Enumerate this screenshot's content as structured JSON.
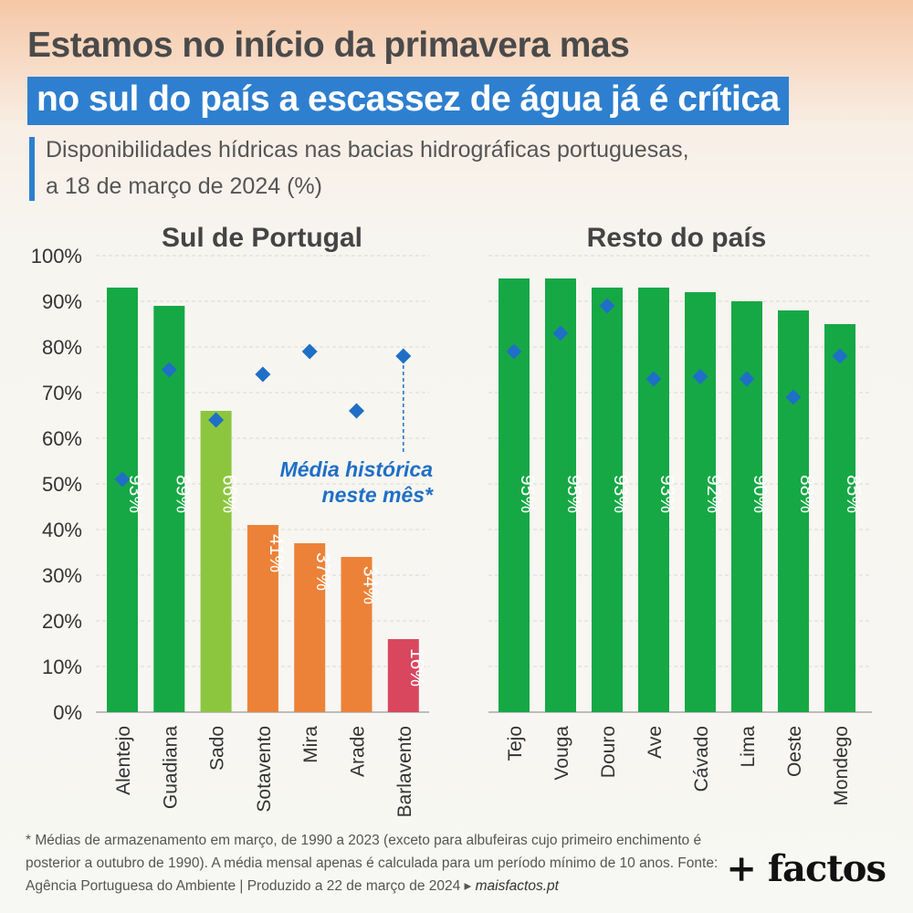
{
  "header": {
    "title_line1": "Estamos no início da primavera mas",
    "title_line2": "no sul do país a escassez de água já é crítica",
    "subtitle_line1": "Disponibilidades hídricas nas bacias hidrográficas portuguesas,",
    "subtitle_line2": "a 18 de março de 2024 (%)"
  },
  "colors": {
    "accent": "#2e7fcf",
    "dark_green": "#16a845",
    "light_green": "#8cc63f",
    "orange": "#ec8238",
    "red": "#d9475f",
    "marker": "#1f6fc6"
  },
  "chart_data": [
    {
      "type": "bar",
      "title": "Sul de Portugal",
      "categories": [
        "Alentejo",
        "Guadiana",
        "Sado",
        "Sotavento",
        "Mira",
        "Arade",
        "Barlavento"
      ],
      "series": [
        {
          "values": [
            93,
            89,
            66,
            41,
            37,
            34,
            16
          ],
          "labels": [
            "93%",
            "89%",
            "66%",
            "41%",
            "37%",
            "34%",
            "16%"
          ]
        },
        {
          "name": "Média histórica neste mês*",
          "type": "marker",
          "values": [
            51,
            75,
            64,
            74,
            79,
            66,
            78
          ]
        }
      ],
      "bar_colors": [
        "#16a845",
        "#16a845",
        "#8cc63f",
        "#ec8238",
        "#ec8238",
        "#ec8238",
        "#d9475f"
      ],
      "ylim": [
        0,
        100
      ],
      "yticks": [
        "0%",
        "10%",
        "20%",
        "30%",
        "40%",
        "50%",
        "60%",
        "70%",
        "80%",
        "90%",
        "100%"
      ],
      "grid": true
    },
    {
      "type": "bar",
      "title": "Resto do país",
      "categories": [
        "Tejo",
        "Vouga",
        "Douro",
        "Ave",
        "Cávado",
        "Lima",
        "Oeste",
        "Mondego"
      ],
      "series": [
        {
          "values": [
            95,
            95,
            93,
            93,
            92,
            90,
            88,
            85
          ],
          "labels": [
            "95%",
            "95%",
            "93%",
            "93%",
            "92%",
            "90%",
            "88%",
            "85%"
          ]
        },
        {
          "type": "marker",
          "values": [
            79,
            83,
            89,
            73,
            73.5,
            73,
            69,
            78
          ]
        }
      ],
      "bar_colors": [
        "#16a845",
        "#16a845",
        "#16a845",
        "#16a845",
        "#16a845",
        "#16a845",
        "#16a845",
        "#16a845"
      ],
      "ylim": [
        0,
        100
      ],
      "grid": true
    }
  ],
  "annotation": {
    "line1": "Média histórica",
    "line2": "neste mês*"
  },
  "footnote": {
    "text": "* Médias de armazenamento em março, de 1990 a 2023 (exceto para albufeiras cujo primeiro enchimento é posterior a outubro de 1990). A média mensal apenas é calculada para um período mínimo de 10 anos. Fonte: Agência Portuguesa do Ambiente | Produzido a 22 de março de 2024 ▸ ",
    "link": "maisfactos.pt"
  },
  "brand": "+ factos"
}
